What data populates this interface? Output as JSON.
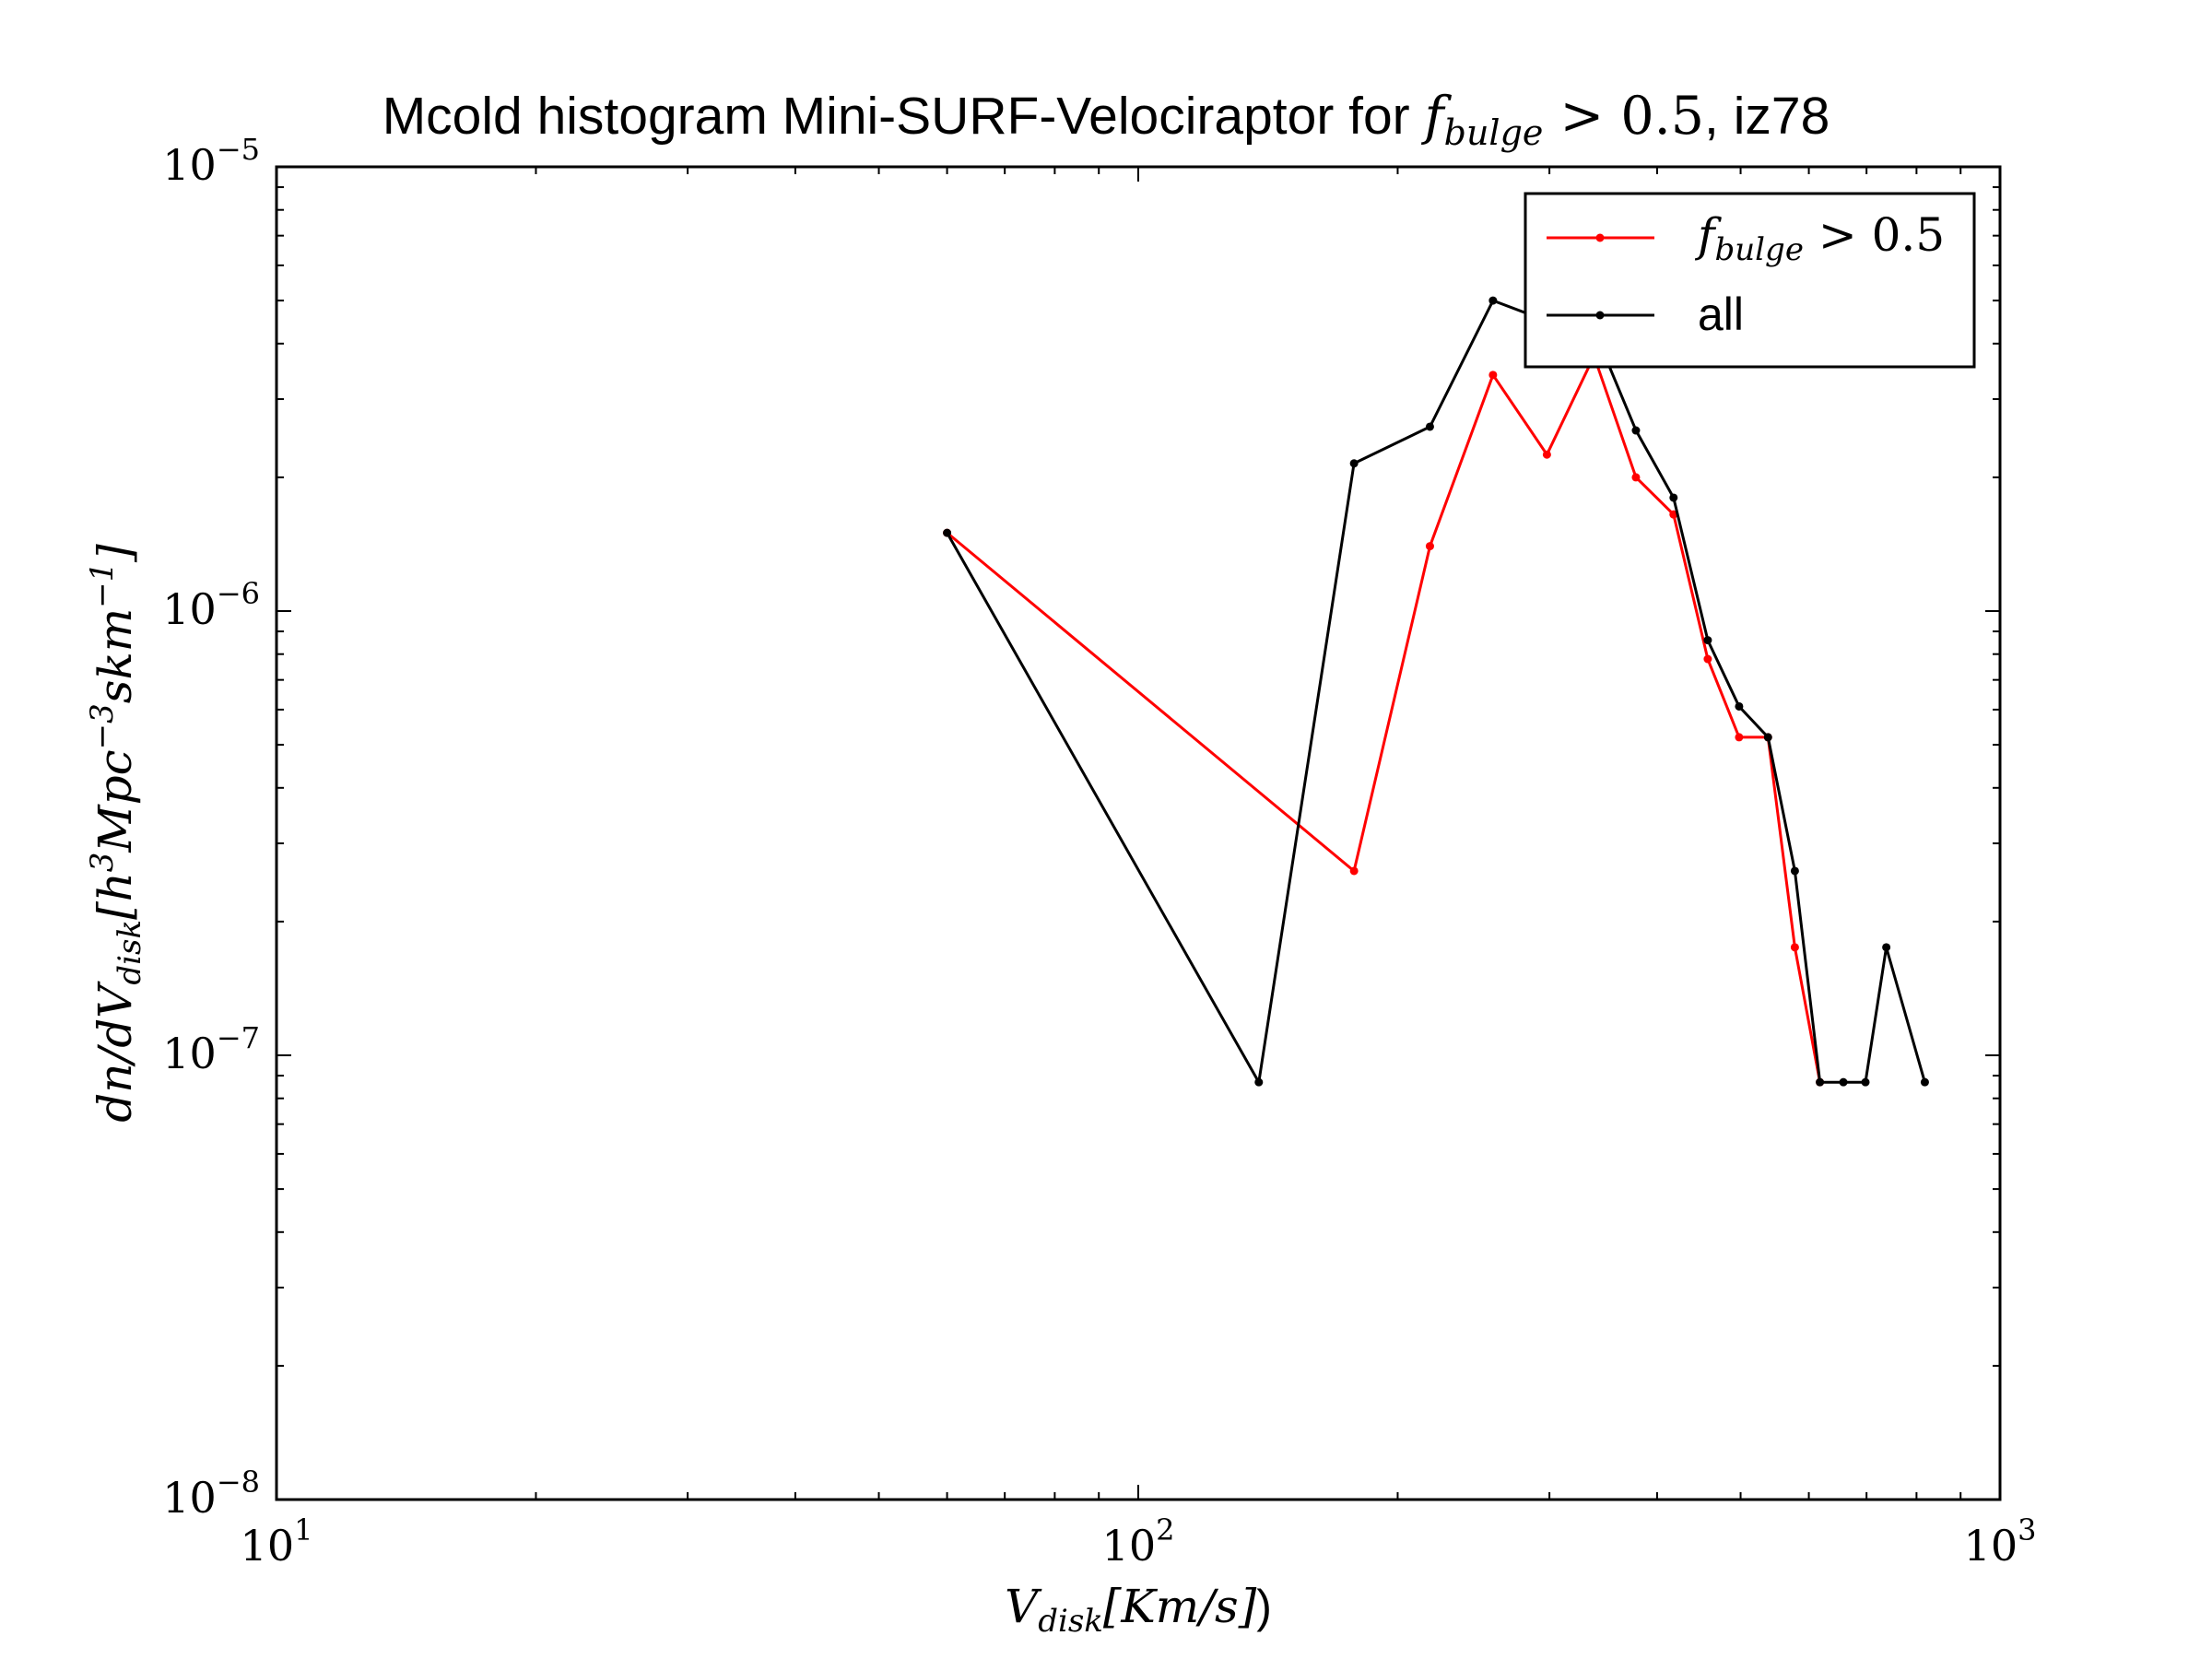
{
  "chart_data": {
    "type": "line",
    "title": {
      "prefix": "Mcold histogram Mini-SURF-Velociraptor for ",
      "math_var": "f",
      "math_sub": "bulge",
      "math_rel": " > 0.5",
      "suffix": ", iz78"
    },
    "xlabel": {
      "var": "V",
      "sub": "disk",
      "rest": "[Km/s]",
      "tail": ")"
    },
    "ylabel": {
      "prefix": "dn/dV",
      "sub": "disk",
      "b1": "[h",
      "e1": "3",
      "mid": "Mpc",
      "e2": "−3",
      "mid2": "skm",
      "e3": "−1",
      "end": "]"
    },
    "x_scale": "log",
    "y_scale": "log",
    "xlim": [
      10,
      1000
    ],
    "ylim": [
      1e-08,
      1e-05
    ],
    "x_ticks": [
      {
        "value": 10,
        "base": "10",
        "exp": "1"
      },
      {
        "value": 100,
        "base": "10",
        "exp": "2"
      },
      {
        "value": 1000,
        "base": "10",
        "exp": "3"
      }
    ],
    "y_ticks": [
      {
        "value": 1e-08,
        "base": "10",
        "exp": "−8"
      },
      {
        "value": 1e-07,
        "base": "10",
        "exp": "−7"
      },
      {
        "value": 1e-06,
        "base": "10",
        "exp": "−6"
      },
      {
        "value": 1e-05,
        "base": "10",
        "exp": "−5"
      }
    ],
    "grid": false,
    "legend_position": "top-right",
    "series": [
      {
        "name_var": "f",
        "name_sub": "bulge",
        "name_rel": " > 0.5",
        "color": "#ff0000",
        "x": [
          60,
          178,
          218,
          258,
          298,
          338,
          378,
          418,
          458,
          498,
          538,
          578,
          618
        ],
        "y": [
          1.5e-06,
          2.6e-07,
          1.4e-06,
          3.4e-06,
          2.25e-06,
          3.75e-06,
          2e-06,
          1.65e-06,
          7.8e-07,
          5.2e-07,
          5.2e-07,
          1.75e-07,
          8.7e-08
        ]
      },
      {
        "name": "all",
        "color": "#000000",
        "x": [
          60,
          138,
          178,
          218,
          258,
          298,
          338,
          378,
          418,
          458,
          498,
          538,
          578,
          618,
          658,
          698,
          738,
          818
        ],
        "y": [
          1.5e-06,
          8.7e-08,
          2.15e-06,
          2.6e-06,
          5e-06,
          4.5e-06,
          4.3e-06,
          2.55e-06,
          1.8e-06,
          8.6e-07,
          6.1e-07,
          5.2e-07,
          2.6e-07,
          8.7e-08,
          8.7e-08,
          8.7e-08,
          1.75e-07,
          8.7e-08
        ]
      }
    ]
  }
}
